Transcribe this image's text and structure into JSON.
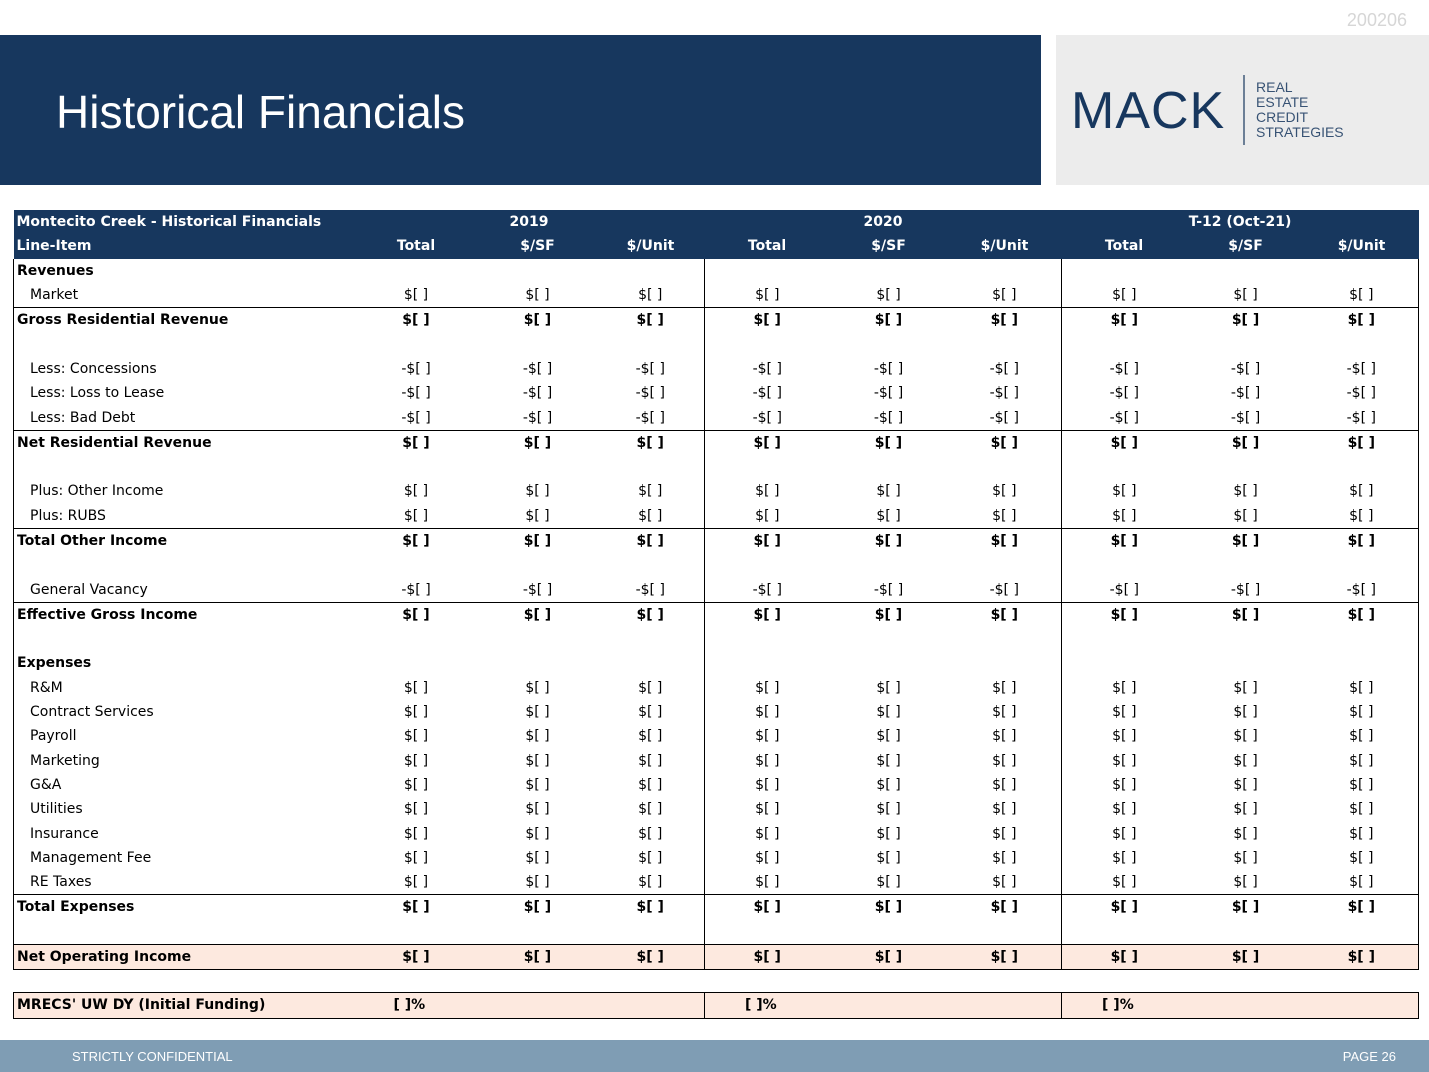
{
  "doc_number": "200206",
  "title": "Historical Financials",
  "logo": {
    "wordmark": "MACK",
    "sub_lines": [
      "REAL",
      "ESTATE",
      "CREDIT",
      "STRATEGIES"
    ]
  },
  "table": {
    "heading": "Montecito Creek - Historical Financials",
    "line_item_label": "Line-Item",
    "periods": [
      "2019",
      "2020",
      "T-12 (Oct-21)"
    ],
    "subcols": [
      "Total",
      "$/SF",
      "$/Unit"
    ],
    "rows": [
      {
        "label": "Revenues",
        "type": "section",
        "values": [
          "",
          "",
          "",
          "",
          "",
          "",
          "",
          "",
          ""
        ]
      },
      {
        "label": "Market",
        "type": "item",
        "values": [
          "$[ ]",
          "$[ ]",
          "$[ ]",
          "$[ ]",
          "$[ ]",
          "$[ ]",
          "$[ ]",
          "$[ ]",
          "$[ ]"
        ]
      },
      {
        "label": "Gross Residential Revenue",
        "type": "total",
        "values": [
          "$[ ]",
          "$[ ]",
          "$[ ]",
          "$[ ]",
          "$[ ]",
          "$[ ]",
          "$[ ]",
          "$[ ]",
          "$[ ]"
        ]
      },
      {
        "label": "",
        "type": "blank",
        "values": [
          "",
          "",
          "",
          "",
          "",
          "",
          "",
          "",
          ""
        ]
      },
      {
        "label": "Less: Concessions",
        "type": "item",
        "values": [
          "-$[ ]",
          "-$[ ]",
          "-$[ ]",
          "-$[ ]",
          "-$[ ]",
          "-$[ ]",
          "-$[ ]",
          "-$[ ]",
          "-$[ ]"
        ]
      },
      {
        "label": "Less: Loss to Lease",
        "type": "item",
        "values": [
          "-$[ ]",
          "-$[ ]",
          "-$[ ]",
          "-$[ ]",
          "-$[ ]",
          "-$[ ]",
          "-$[ ]",
          "-$[ ]",
          "-$[ ]"
        ]
      },
      {
        "label": "Less: Bad Debt",
        "type": "item",
        "values": [
          "-$[ ]",
          "-$[ ]",
          "-$[ ]",
          "-$[ ]",
          "-$[ ]",
          "-$[ ]",
          "-$[ ]",
          "-$[ ]",
          "-$[ ]"
        ]
      },
      {
        "label": "Net Residential Revenue",
        "type": "total",
        "values": [
          "$[ ]",
          "$[ ]",
          "$[ ]",
          "$[ ]",
          "$[ ]",
          "$[ ]",
          "$[ ]",
          "$[ ]",
          "$[ ]"
        ]
      },
      {
        "label": "",
        "type": "blank",
        "values": [
          "",
          "",
          "",
          "",
          "",
          "",
          "",
          "",
          ""
        ]
      },
      {
        "label": "Plus: Other Income",
        "type": "item",
        "values": [
          "$[ ]",
          "$[ ]",
          "$[ ]",
          "$[ ]",
          "$[ ]",
          "$[ ]",
          "$[ ]",
          "$[ ]",
          "$[ ]"
        ]
      },
      {
        "label": "Plus: RUBS",
        "type": "item",
        "values": [
          "$[ ]",
          "$[ ]",
          "$[ ]",
          "$[ ]",
          "$[ ]",
          "$[ ]",
          "$[ ]",
          "$[ ]",
          "$[ ]"
        ]
      },
      {
        "label": "Total Other Income",
        "type": "total",
        "values": [
          "$[ ]",
          "$[ ]",
          "$[ ]",
          "$[ ]",
          "$[ ]",
          "$[ ]",
          "$[ ]",
          "$[ ]",
          "$[ ]"
        ]
      },
      {
        "label": "",
        "type": "blank",
        "values": [
          "",
          "",
          "",
          "",
          "",
          "",
          "",
          "",
          ""
        ]
      },
      {
        "label": "General Vacancy",
        "type": "item",
        "values": [
          "-$[ ]",
          "-$[ ]",
          "-$[ ]",
          "-$[ ]",
          "-$[ ]",
          "-$[ ]",
          "-$[ ]",
          "-$[ ]",
          "-$[ ]"
        ]
      },
      {
        "label": "Effective Gross Income",
        "type": "total",
        "values": [
          "$[ ]",
          "$[ ]",
          "$[ ]",
          "$[ ]",
          "$[ ]",
          "$[ ]",
          "$[ ]",
          "$[ ]",
          "$[ ]"
        ]
      },
      {
        "label": "",
        "type": "blank",
        "values": [
          "",
          "",
          "",
          "",
          "",
          "",
          "",
          "",
          ""
        ]
      },
      {
        "label": "Expenses",
        "type": "section",
        "values": [
          "",
          "",
          "",
          "",
          "",
          "",
          "",
          "",
          ""
        ]
      },
      {
        "label": "R&M",
        "type": "item",
        "values": [
          "$[ ]",
          "$[ ]",
          "$[ ]",
          "$[ ]",
          "$[ ]",
          "$[ ]",
          "$[ ]",
          "$[ ]",
          "$[ ]"
        ]
      },
      {
        "label": "Contract Services",
        "type": "item",
        "values": [
          "$[ ]",
          "$[ ]",
          "$[ ]",
          "$[ ]",
          "$[ ]",
          "$[ ]",
          "$[ ]",
          "$[ ]",
          "$[ ]"
        ]
      },
      {
        "label": "Payroll",
        "type": "item",
        "values": [
          "$[ ]",
          "$[ ]",
          "$[ ]",
          "$[ ]",
          "$[ ]",
          "$[ ]",
          "$[ ]",
          "$[ ]",
          "$[ ]"
        ]
      },
      {
        "label": "Marketing",
        "type": "item",
        "values": [
          "$[ ]",
          "$[ ]",
          "$[ ]",
          "$[ ]",
          "$[ ]",
          "$[ ]",
          "$[ ]",
          "$[ ]",
          "$[ ]"
        ]
      },
      {
        "label": "G&A",
        "type": "item",
        "values": [
          "$[ ]",
          "$[ ]",
          "$[ ]",
          "$[ ]",
          "$[ ]",
          "$[ ]",
          "$[ ]",
          "$[ ]",
          "$[ ]"
        ]
      },
      {
        "label": "Utilities",
        "type": "item",
        "values": [
          "$[ ]",
          "$[ ]",
          "$[ ]",
          "$[ ]",
          "$[ ]",
          "$[ ]",
          "$[ ]",
          "$[ ]",
          "$[ ]"
        ]
      },
      {
        "label": "Insurance",
        "type": "item",
        "values": [
          "$[ ]",
          "$[ ]",
          "$[ ]",
          "$[ ]",
          "$[ ]",
          "$[ ]",
          "$[ ]",
          "$[ ]",
          "$[ ]"
        ]
      },
      {
        "label": "Management Fee",
        "type": "item",
        "values": [
          "$[ ]",
          "$[ ]",
          "$[ ]",
          "$[ ]",
          "$[ ]",
          "$[ ]",
          "$[ ]",
          "$[ ]",
          "$[ ]"
        ]
      },
      {
        "label": "RE Taxes",
        "type": "item",
        "values": [
          "$[ ]",
          "$[ ]",
          "$[ ]",
          "$[ ]",
          "$[ ]",
          "$[ ]",
          "$[ ]",
          "$[ ]",
          "$[ ]"
        ]
      },
      {
        "label": "Total Expenses",
        "type": "total",
        "values": [
          "$[ ]",
          "$[ ]",
          "$[ ]",
          "$[ ]",
          "$[ ]",
          "$[ ]",
          "$[ ]",
          "$[ ]",
          "$[ ]"
        ]
      },
      {
        "label": "",
        "type": "blank-end",
        "values": [
          "",
          "",
          "",
          "",
          "",
          "",
          "",
          "",
          ""
        ]
      },
      {
        "label": "Net Operating Income",
        "type": "noi",
        "values": [
          "$[ ]",
          "$[ ]",
          "$[ ]",
          "$[ ]",
          "$[ ]",
          "$[ ]",
          "$[ ]",
          "$[ ]",
          "$[ ]"
        ]
      }
    ],
    "dy_row": {
      "label": "MRECS' UW DY (Initial Funding)",
      "values": [
        "[ ]%",
        "[ ]%",
        "[ ]%"
      ]
    }
  },
  "footer": {
    "confidential": "STRICTLY CONFIDENTIAL",
    "page": "PAGE 26"
  },
  "colors": {
    "navy": "#17375e",
    "highlight": "#fde9df",
    "footer": "#7f9db4"
  }
}
